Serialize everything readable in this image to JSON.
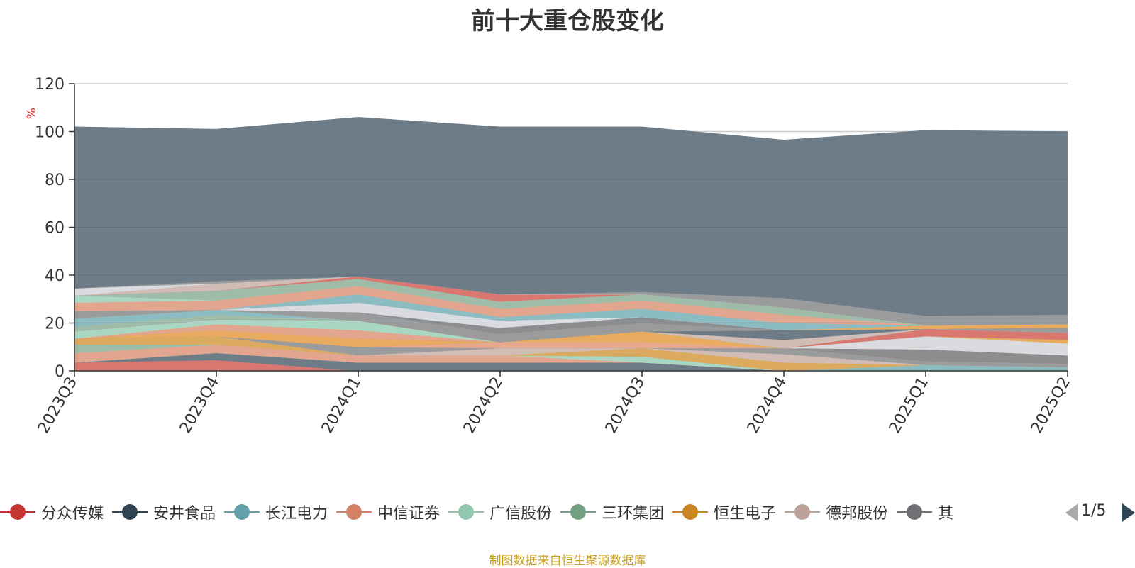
{
  "title": "前十大重仓股变化",
  "source_note": "制图数据来自恒生聚源数据库",
  "legend": {
    "items": [
      {
        "label": "分众传媒",
        "color": "#c23531"
      },
      {
        "label": "安井食品",
        "color": "#2f4554"
      },
      {
        "label": "长江电力",
        "color": "#61a0a8"
      },
      {
        "label": "中信证券",
        "color": "#d48265"
      },
      {
        "label": "广信股份",
        "color": "#91c7ae"
      },
      {
        "label": "三环集团",
        "color": "#749f83"
      },
      {
        "label": "恒生电子",
        "color": "#ca8622"
      },
      {
        "label": "德邦股份",
        "color": "#bda29a"
      },
      {
        "label": "其",
        "color": "#6e7074"
      }
    ],
    "page": "1/5"
  },
  "chart_data": {
    "type": "area",
    "stacked": true,
    "title": "前十大重仓股变化",
    "ylabel": "%",
    "ylim": [
      0,
      120
    ],
    "yticks": [
      0,
      20,
      40,
      60,
      80,
      100,
      120
    ],
    "grid": true,
    "categories": [
      "2023Q3",
      "2023Q4",
      "2024Q1",
      "2024Q2",
      "2024Q3",
      "2024Q4",
      "2025Q1",
      "2025Q2"
    ],
    "series": [
      {
        "name": "分众传媒",
        "color": "#d97870",
        "values": [
          3.5,
          4.5,
          0,
          0,
          0,
          0,
          0,
          0
        ]
      },
      {
        "name": "安井食品",
        "color": "#6e7c87",
        "values": [
          0,
          3,
          3.5,
          3.5,
          3.5,
          0,
          0,
          0
        ]
      },
      {
        "name": "长江电力",
        "color": "#8bbcc2",
        "values": [
          0,
          0,
          0,
          0,
          0,
          0,
          2.5,
          1.5
        ]
      },
      {
        "name": "中信证券",
        "color": "#e2a58d",
        "values": [
          4,
          3.5,
          3,
          3,
          0,
          0,
          0,
          0
        ]
      },
      {
        "name": "广信股份",
        "color": "#aad7c3",
        "values": [
          0,
          0,
          0,
          0,
          2.5,
          0,
          0,
          0
        ]
      },
      {
        "name": "三环集团",
        "color": "#9ebca8",
        "values": [
          3.5,
          0,
          0,
          0,
          0,
          0,
          0,
          0
        ]
      },
      {
        "name": "恒生电子",
        "color": "#dcaa5e",
        "values": [
          2.5,
          3.5,
          0,
          0,
          3.5,
          3.5,
          0,
          0
        ]
      },
      {
        "name": "德邦股份",
        "color": "#d1bdb6",
        "values": [
          0,
          0,
          0,
          3,
          0,
          3.5,
          0,
          0
        ]
      },
      {
        "name": null,
        "color": "#9a9b9d",
        "values": [
          0,
          0,
          3.5,
          0,
          0,
          2.5,
          1.5,
          1.5
        ]
      },
      {
        "name": null,
        "color": "#e8a88e",
        "values": [
          0,
          0,
          0,
          2.5,
          2.5,
          0,
          0,
          0
        ]
      },
      {
        "name": null,
        "color": "#8c8d8f",
        "values": [
          0,
          0,
          0,
          0,
          0,
          0,
          5,
          3.5
        ]
      },
      {
        "name": null,
        "color": "#e8ab5f",
        "values": [
          0,
          2.5,
          3.5,
          0,
          0,
          0,
          0,
          0
        ]
      },
      {
        "name": null,
        "color": "#d97870",
        "values": [
          0,
          0,
          0,
          0,
          0,
          0,
          0,
          0
        ]
      },
      {
        "name": null,
        "color": "#e2a58d",
        "values": [
          0,
          2.5,
          3.5,
          0,
          0,
          0,
          0,
          0
        ]
      },
      {
        "name": null,
        "color": "#d9dbe1",
        "values": [
          0,
          0,
          0,
          0,
          0,
          0,
          5.5,
          5
        ]
      },
      {
        "name": null,
        "color": "#e8ab5f",
        "values": [
          0,
          0,
          0,
          0,
          4.5,
          0,
          0,
          1.5
        ]
      },
      {
        "name": null,
        "color": "#aad7c3",
        "values": [
          3,
          2,
          4,
          0,
          0,
          0,
          0,
          0
        ]
      },
      {
        "name": null,
        "color": "#d97870",
        "values": [
          0,
          0,
          0,
          0,
          0,
          0,
          3,
          3
        ]
      },
      {
        "name": null,
        "color": "#9ebca8",
        "values": [
          2,
          2,
          0,
          0,
          0,
          0,
          0,
          0
        ]
      },
      {
        "name": null,
        "color": "#8bbcc2",
        "values": [
          3.5,
          2,
          0,
          0,
          0,
          0,
          0,
          0
        ]
      },
      {
        "name": null,
        "color": "#d1bdb6",
        "values": [
          0,
          0,
          0,
          0,
          0,
          3.5,
          0,
          0
        ]
      },
      {
        "name": null,
        "color": "#9a9b9d",
        "values": [
          0,
          0,
          0,
          0,
          0,
          0,
          0,
          2
        ]
      },
      {
        "name": null,
        "color": "#6e7c87",
        "values": [
          0,
          0,
          0,
          0,
          0,
          4,
          0,
          0
        ]
      },
      {
        "name": null,
        "color": "#e8ab5f",
        "values": [
          0,
          0,
          0,
          0,
          0,
          0,
          1.5,
          1.5
        ]
      },
      {
        "name": null,
        "color": "#9a9b9d",
        "values": [
          3,
          0,
          3.5,
          3.5,
          3.5,
          0,
          0,
          0
        ]
      },
      {
        "name": null,
        "color": "#8c8d8f",
        "values": [
          0,
          0,
          0,
          2.5,
          2.5,
          0,
          0,
          0
        ]
      },
      {
        "name": null,
        "color": "#d9dbe1",
        "values": [
          0,
          0,
          4,
          3,
          0,
          0,
          0,
          0
        ]
      },
      {
        "name": null,
        "color": "#8bbcc2",
        "values": [
          0,
          0,
          3.5,
          1.5,
          3.5,
          3,
          0,
          0
        ]
      },
      {
        "name": null,
        "color": "#e2a58d",
        "values": [
          3.5,
          4,
          3.5,
          3.5,
          3.5,
          3.5,
          0,
          0
        ]
      },
      {
        "name": null,
        "color": "#aad7c3",
        "values": [
          3,
          0,
          0,
          0,
          0,
          0,
          0,
          0
        ]
      },
      {
        "name": null,
        "color": "#9ebca8",
        "values": [
          0,
          4,
          3,
          3,
          2.5,
          3,
          0,
          0
        ]
      },
      {
        "name": null,
        "color": "#d97870",
        "values": [
          0,
          0,
          1,
          3,
          0,
          0,
          0,
          0
        ]
      },
      {
        "name": null,
        "color": "#d1bdb6",
        "values": [
          0,
          3,
          0,
          0,
          0,
          0,
          0,
          0
        ]
      },
      {
        "name": null,
        "color": "#d9dbe1",
        "values": [
          3,
          0,
          0,
          0,
          0,
          0,
          0,
          0
        ]
      },
      {
        "name": null,
        "color": "#9a9b9d",
        "values": [
          0,
          1,
          0,
          0,
          1,
          4,
          4,
          4
        ]
      },
      {
        "name": null,
        "color": "#6e7c87",
        "values": [
          67.5,
          63.5,
          66.5,
          70,
          69,
          66,
          77.5,
          76.5
        ]
      }
    ]
  }
}
